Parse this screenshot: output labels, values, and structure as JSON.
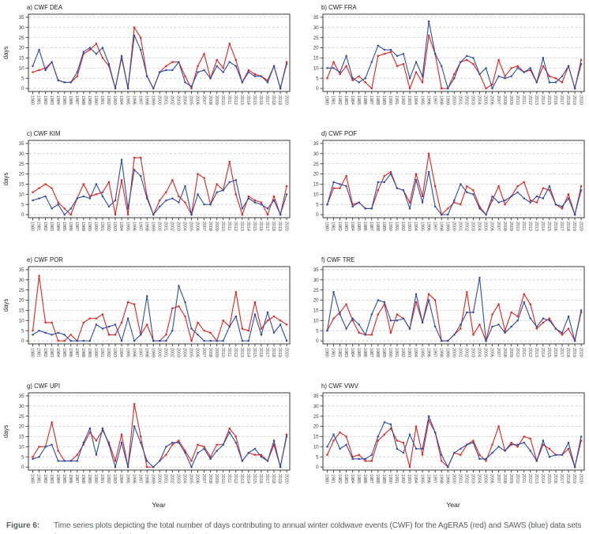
{
  "figure": {
    "caption_label": "Figure 6:",
    "caption_text": "Time series plots depicting the total number of days contributing to annual winter coldwave events (CWF) for the AgERA5 (red) and SAWS (blue) data sets from 1980 to 2020 for locations mapped in Figure 1."
  },
  "colors": {
    "agera5": "#e02420",
    "saws": "#2e4ea4",
    "grid": "#cbcbcb",
    "axis": "#3a3a3a",
    "tick_text": "#3d3d3d",
    "title_text": "#1a1a1a"
  },
  "axes": {
    "ylabel": "days",
    "xlabel": "Year",
    "ylim": [
      0,
      35
    ],
    "yticks": [
      0,
      5,
      10,
      15,
      20,
      25,
      30,
      35
    ],
    "years": [
      1980,
      1981,
      1982,
      1983,
      1984,
      1985,
      1986,
      1987,
      1988,
      1989,
      1990,
      1991,
      1992,
      1993,
      1994,
      1995,
      1996,
      1997,
      1998,
      1999,
      2000,
      2001,
      2002,
      2003,
      2004,
      2005,
      2006,
      2007,
      2008,
      2009,
      2010,
      2011,
      2012,
      2013,
      2014,
      2015,
      2016,
      2017,
      2018,
      2019,
      2020
    ]
  },
  "chart_data": [
    {
      "id": "a",
      "title": "a) CWF DEA",
      "type": "line",
      "location": "DEA",
      "series": [
        {
          "name": "AgERA5",
          "color_key": "agera5",
          "values": [
            8,
            9,
            10,
            13,
            4,
            3,
            3,
            6,
            17,
            19,
            22,
            15,
            11,
            0,
            15,
            0,
            30,
            25,
            6,
            0,
            8,
            11,
            13,
            13,
            6,
            0,
            11,
            17,
            5,
            14,
            10,
            22,
            14,
            3,
            9,
            7,
            6,
            4,
            11,
            0,
            13
          ]
        },
        {
          "name": "SAWS",
          "color_key": "saws",
          "values": [
            11,
            19,
            9,
            13,
            4,
            3,
            3,
            8,
            18,
            20,
            17,
            20,
            12,
            0,
            16,
            0,
            26,
            19,
            6,
            0,
            8,
            9,
            9,
            13,
            3,
            1,
            8,
            9,
            5,
            11,
            8,
            13,
            11,
            3,
            8,
            6,
            6,
            3,
            11,
            0,
            12
          ]
        }
      ]
    },
    {
      "id": "b",
      "title": "b) CWF FRA",
      "type": "line",
      "location": "FRA",
      "series": [
        {
          "name": "AgERA5",
          "color_key": "agera5",
          "values": [
            5,
            13,
            7,
            11,
            4,
            6,
            3,
            0,
            16,
            17,
            18,
            11,
            12,
            0,
            8,
            3,
            26,
            17,
            0,
            0,
            7,
            13,
            14,
            12,
            7,
            0,
            2,
            14,
            6,
            10,
            11,
            8,
            9,
            3,
            11,
            6,
            5,
            3,
            11,
            0,
            14
          ]
        },
        {
          "name": "SAWS",
          "color_key": "saws",
          "values": [
            10,
            10,
            8,
            16,
            5,
            3,
            5,
            13,
            21,
            19,
            19,
            16,
            17,
            5,
            13,
            6,
            33,
            17,
            11,
            0,
            5,
            13,
            16,
            15,
            7,
            10,
            0,
            6,
            5,
            6,
            10,
            8,
            10,
            3,
            15,
            3,
            3,
            6,
            11,
            0,
            12
          ]
        }
      ]
    },
    {
      "id": "c",
      "title": "c) CWF KIM",
      "type": "line",
      "location": "KIM",
      "series": [
        {
          "name": "AgERA5",
          "color_key": "agera5",
          "values": [
            11,
            13,
            15,
            13,
            6,
            3,
            0,
            8,
            15,
            9,
            10,
            11,
            16,
            0,
            17,
            0,
            28,
            28,
            9,
            0,
            7,
            11,
            17,
            9,
            6,
            0,
            20,
            18,
            5,
            15,
            12,
            26,
            10,
            0,
            9,
            7,
            6,
            0,
            9,
            0,
            14
          ]
        },
        {
          "name": "SAWS",
          "color_key": "saws",
          "values": [
            7,
            8,
            9,
            3,
            5,
            0,
            3,
            8,
            9,
            8,
            15,
            9,
            4,
            7,
            27,
            3,
            22,
            19,
            8,
            0,
            4,
            7,
            8,
            6,
            14,
            0,
            10,
            5,
            5,
            11,
            12,
            16,
            17,
            3,
            8,
            6,
            5,
            3,
            7,
            0,
            10
          ]
        }
      ]
    },
    {
      "id": "d",
      "title": "d) CWF POF",
      "type": "line",
      "location": "POF",
      "series": [
        {
          "name": "AgERA5",
          "color_key": "agera5",
          "values": [
            5,
            13,
            13,
            19,
            5,
            6,
            3,
            3,
            12,
            19,
            21,
            13,
            12,
            6,
            20,
            9,
            30,
            14,
            0,
            3,
            6,
            5,
            14,
            12,
            4,
            0,
            7,
            14,
            5,
            9,
            14,
            16,
            7,
            6,
            13,
            12,
            5,
            3,
            10,
            0,
            14
          ]
        },
        {
          "name": "SAWS",
          "color_key": "saws",
          "values": [
            5,
            16,
            15,
            14,
            4,
            6,
            3,
            3,
            16,
            16,
            20,
            13,
            12,
            3,
            17,
            6,
            21,
            4,
            0,
            0,
            7,
            15,
            11,
            10,
            3,
            0,
            9,
            6,
            7,
            9,
            11,
            8,
            6,
            9,
            8,
            14,
            5,
            4,
            8,
            0,
            12
          ]
        }
      ]
    },
    {
      "id": "e",
      "title": "e) CWF POR",
      "type": "line",
      "location": "POR",
      "series": [
        {
          "name": "AgERA5",
          "color_key": "agera5",
          "values": [
            5,
            32,
            9,
            9,
            0,
            0,
            3,
            0,
            9,
            11,
            11,
            13,
            3,
            3,
            9,
            19,
            18,
            3,
            8,
            0,
            0,
            3,
            16,
            17,
            12,
            0,
            9,
            5,
            4,
            0,
            10,
            7,
            24,
            6,
            5,
            19,
            6,
            10,
            12,
            10,
            8
          ]
        },
        {
          "name": "SAWS",
          "color_key": "saws",
          "values": [
            3,
            5,
            4,
            3,
            4,
            3,
            0,
            0,
            0,
            0,
            8,
            6,
            7,
            8,
            0,
            11,
            0,
            3,
            22,
            0,
            0,
            0,
            5,
            27,
            19,
            6,
            3,
            0,
            0,
            0,
            0,
            7,
            12,
            0,
            0,
            13,
            3,
            14,
            4,
            8,
            0
          ]
        }
      ]
    },
    {
      "id": "f",
      "title": "f) CWF TRE",
      "type": "line",
      "location": "TRE",
      "series": [
        {
          "name": "AgERA5",
          "color_key": "agera5",
          "values": [
            5,
            11,
            14,
            18,
            10,
            4,
            3,
            3,
            13,
            18,
            4,
            13,
            11,
            6,
            19,
            9,
            23,
            20,
            0,
            0,
            3,
            6,
            24,
            3,
            8,
            0,
            13,
            18,
            5,
            14,
            12,
            23,
            18,
            6,
            9,
            11,
            6,
            3,
            6,
            0,
            14
          ]
        },
        {
          "name": "SAWS",
          "color_key": "saws",
          "values": [
            5,
            24,
            13,
            6,
            11,
            8,
            3,
            13,
            20,
            19,
            10,
            10,
            11,
            6,
            23,
            9,
            20,
            7,
            0,
            0,
            3,
            8,
            14,
            14,
            31,
            0,
            7,
            8,
            4,
            7,
            10,
            19,
            11,
            7,
            11,
            10,
            6,
            4,
            12,
            0,
            15
          ]
        }
      ]
    },
    {
      "id": "g",
      "title": "g) CWF UPI",
      "type": "line",
      "location": "UPI",
      "series": [
        {
          "name": "AgERA5",
          "color_key": "agera5",
          "values": [
            5,
            10,
            10,
            22,
            8,
            3,
            3,
            6,
            11,
            17,
            13,
            18,
            12,
            3,
            16,
            0,
            31,
            15,
            0,
            0,
            3,
            6,
            11,
            13,
            8,
            3,
            11,
            10,
            5,
            11,
            11,
            19,
            15,
            3,
            7,
            6,
            6,
            3,
            11,
            0,
            16
          ]
        },
        {
          "name": "SAWS",
          "color_key": "saws",
          "values": [
            4,
            5,
            10,
            11,
            3,
            3,
            3,
            3,
            12,
            19,
            6,
            19,
            11,
            0,
            12,
            0,
            20,
            12,
            3,
            0,
            3,
            10,
            12,
            12,
            7,
            0,
            7,
            9,
            4,
            8,
            11,
            17,
            12,
            3,
            7,
            9,
            5,
            3,
            13,
            0,
            15
          ]
        }
      ]
    },
    {
      "id": "h",
      "title": "h) CWF VWV",
      "type": "line",
      "location": "VWV",
      "series": [
        {
          "name": "AgERA5",
          "color_key": "agera5",
          "values": [
            6,
            13,
            17,
            15,
            5,
            6,
            3,
            3,
            13,
            16,
            19,
            13,
            12,
            0,
            20,
            6,
            23,
            17,
            3,
            0,
            7,
            6,
            11,
            13,
            6,
            3,
            11,
            20,
            8,
            12,
            10,
            15,
            14,
            3,
            11,
            9,
            6,
            6,
            9,
            0,
            13
          ]
        },
        {
          "name": "SAWS",
          "color_key": "saws",
          "values": [
            10,
            16,
            9,
            11,
            4,
            4,
            4,
            6,
            15,
            22,
            21,
            9,
            7,
            16,
            9,
            9,
            25,
            17,
            6,
            0,
            7,
            9,
            11,
            12,
            4,
            4,
            7,
            10,
            8,
            11,
            11,
            12,
            8,
            3,
            13,
            5,
            6,
            6,
            12,
            0,
            15
          ]
        }
      ]
    }
  ]
}
